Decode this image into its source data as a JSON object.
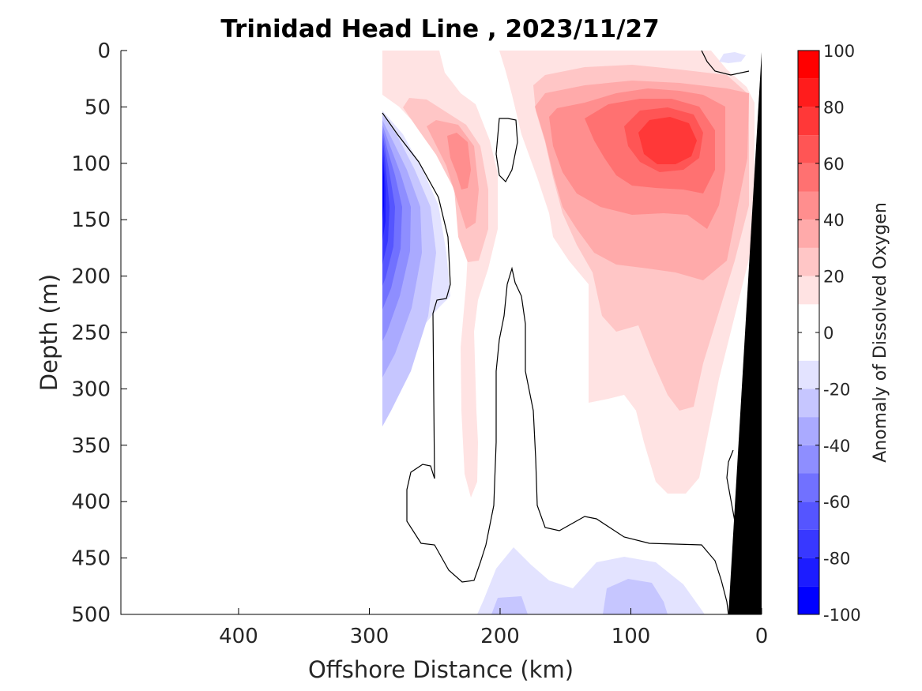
{
  "chart_data": {
    "type": "contour",
    "title": "Trinidad Head Line , 2023/11/27",
    "xlabel": "Offshore Distance (km)",
    "ylabel": "Depth (m)",
    "xlim": [
      490,
      0
    ],
    "ylim": [
      0,
      500
    ],
    "x_reversed": true,
    "y_reversed": true,
    "x_ticks": [
      400,
      300,
      200,
      100,
      0
    ],
    "x_tick_labels": [
      "400",
      "300",
      "200",
      "100",
      "0"
    ],
    "y_ticks": [
      0,
      50,
      100,
      150,
      200,
      250,
      300,
      350,
      400,
      450,
      500
    ],
    "y_tick_labels": [
      "0",
      "50",
      "100",
      "150",
      "200",
      "250",
      "300",
      "350",
      "400",
      "450",
      "500"
    ],
    "colorbar": {
      "label": "Anomaly of Dissolved Oxygen",
      "range": [
        -100,
        100
      ],
      "tick_values": [
        100,
        80,
        60,
        40,
        20,
        0,
        -20,
        -40,
        -60,
        -80,
        -100
      ],
      "tick_labels": [
        "100",
        "80",
        "60",
        "40",
        "20",
        "0",
        "-20",
        "-40",
        "-60",
        "-80",
        "-100"
      ],
      "levels": [
        -100,
        -90,
        -80,
        -70,
        -60,
        -50,
        -40,
        -30,
        -20,
        -10,
        10,
        20,
        30,
        40,
        50,
        60,
        70,
        80,
        90,
        100
      ],
      "colors_low_to_high": [
        "#0000ff",
        "#1c1cff",
        "#3838ff",
        "#5555ff",
        "#7171ff",
        "#8e8eff",
        "#aaaaff",
        "#c6c6ff",
        "#e3e3ff",
        "#ffffff",
        "#ffe3e3",
        "#ffc6c6",
        "#ffaaaa",
        "#ff8e8e",
        "#ff7171",
        "#ff5555",
        "#ff3838",
        "#ff1c1c",
        "#ff0000"
      ]
    },
    "data_extent_km": [
      290,
      0
    ],
    "features": [
      {
        "name": "negative-anomaly-offshore",
        "center_km": 288,
        "center_depth_m": 140,
        "min_value": -100
      },
      {
        "name": "positive-anomaly-nearshore",
        "center_km": 80,
        "center_depth_m": 85,
        "max_value": 75
      },
      {
        "name": "positive-anomaly-offshore",
        "center_km": 228,
        "center_depth_m": 100,
        "max_value": 45
      },
      {
        "name": "negative-anomaly-deep",
        "center_km": 100,
        "center_depth_m": 490,
        "min_value": -30
      },
      {
        "name": "bottom-topography",
        "color": "#000000"
      }
    ]
  }
}
